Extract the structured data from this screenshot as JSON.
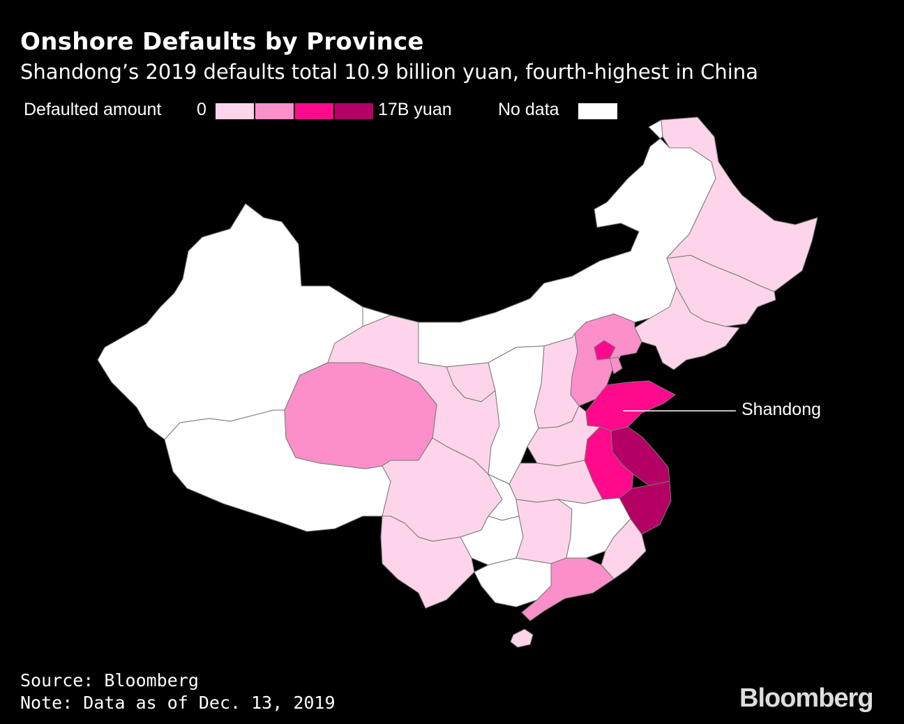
{
  "title": "Onshore Defaults by Province",
  "subtitle": "Shandong’s 2019 defaults total 10.9 billion yuan, fourth-highest in China",
  "legend": {
    "label": "Defaulted amount",
    "min_label": "0",
    "max_label": "17B yuan",
    "no_data_label": "No data",
    "scale_colors": [
      "#fdd4ea",
      "#fb8fc9",
      "#ff0a8c",
      "#b40064"
    ],
    "no_data_color": "#ffffff"
  },
  "callout": {
    "label": "Shandong"
  },
  "source": "Source: Bloomberg",
  "note": "Note: Data as of Dec. 13, 2019",
  "brand": "Bloomberg",
  "colors": {
    "background": "#000000",
    "border": "#777777",
    "text": "#ffffff"
  },
  "regions": [
    {
      "name": "Xinjiang",
      "bin": "none"
    },
    {
      "name": "Tibet",
      "bin": "none"
    },
    {
      "name": "Inner Mongolia",
      "bin": "none"
    },
    {
      "name": "Heilongjiang",
      "bin": 1
    },
    {
      "name": "Jilin",
      "bin": 1
    },
    {
      "name": "Liaoning",
      "bin": 1
    },
    {
      "name": "Hebei",
      "bin": 2
    },
    {
      "name": "Beijing",
      "bin": 3
    },
    {
      "name": "Tianjin",
      "bin": 2
    },
    {
      "name": "Shanxi",
      "bin": 1
    },
    {
      "name": "Shandong",
      "bin": 3
    },
    {
      "name": "Jiangsu",
      "bin": 4
    },
    {
      "name": "Anhui",
      "bin": 3
    },
    {
      "name": "Zhejiang",
      "bin": 4
    },
    {
      "name": "Henan",
      "bin": 1
    },
    {
      "name": "Hubei",
      "bin": 1
    },
    {
      "name": "Shaanxi",
      "bin": "none"
    },
    {
      "name": "Ningxia",
      "bin": 1
    },
    {
      "name": "Gansu",
      "bin": 1
    },
    {
      "name": "Qinghai",
      "bin": 2
    },
    {
      "name": "Sichuan",
      "bin": 1
    },
    {
      "name": "Chongqing",
      "bin": "none"
    },
    {
      "name": "Guizhou",
      "bin": "none"
    },
    {
      "name": "Yunnan",
      "bin": 1
    },
    {
      "name": "Guangxi",
      "bin": "none"
    },
    {
      "name": "Hunan",
      "bin": 1
    },
    {
      "name": "Jiangxi",
      "bin": "none"
    },
    {
      "name": "Fujian",
      "bin": 1
    },
    {
      "name": "Guangdong",
      "bin": 2
    },
    {
      "name": "Hainan",
      "bin": 1
    }
  ]
}
